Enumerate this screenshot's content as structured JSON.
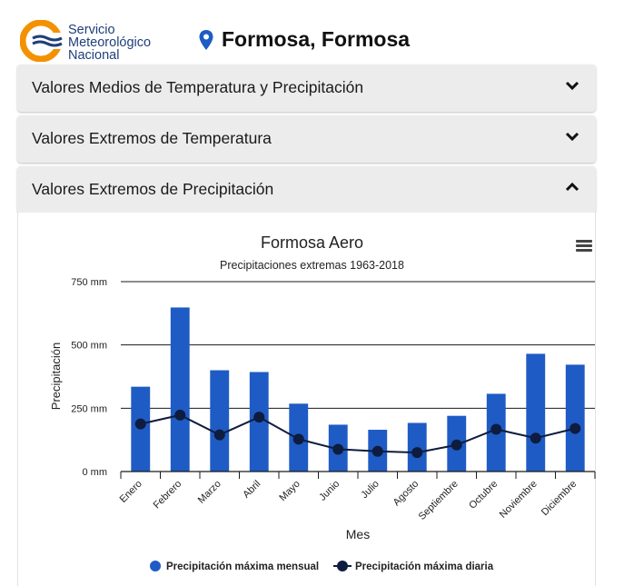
{
  "header": {
    "logo_lines": [
      "Servicio",
      "Meteorológico",
      "Nacional"
    ],
    "location": "Formosa, Formosa"
  },
  "accordions": [
    {
      "label": "Valores Medios de Temperatura y Precipitación",
      "state": "collapsed"
    },
    {
      "label": "Valores Extremos de Temperatura",
      "state": "collapsed"
    },
    {
      "label": "Valores Extremos de Precipitación",
      "state": "expanded"
    }
  ],
  "colors": {
    "bar": "#1f5bc4",
    "line": "#0e1c3f",
    "logo_orange": "#f39200",
    "logo_blue": "#1f3f7a",
    "pin": "#1f5bc4"
  },
  "chart_data": {
    "type": "bar",
    "title": "Formosa Aero",
    "subtitle": "Precipitaciones extremas 1963-2018",
    "xlabel": "Mes",
    "ylabel": "Precipitación",
    "ylim": [
      0,
      750
    ],
    "yticks": [
      0,
      250,
      500,
      750
    ],
    "ytick_labels": [
      "0 mm",
      "250 mm",
      "500 mm",
      "750 mm"
    ],
    "grid": true,
    "legend_position": "bottom",
    "categories": [
      "Enero",
      "Febrero",
      "Marzo",
      "Abril",
      "Mayo",
      "Junio",
      "Julio",
      "Agosto",
      "Septiembre",
      "Octubre",
      "Noviembre",
      "Diciembre"
    ],
    "series": [
      {
        "name": "Precipitación máxima mensual",
        "type": "bar",
        "values": [
          335,
          648,
          400,
          393,
          268,
          185,
          165,
          192,
          220,
          307,
          465,
          422
        ]
      },
      {
        "name": "Precipitación máxima diaria",
        "type": "line",
        "values": [
          188,
          223,
          145,
          215,
          128,
          88,
          80,
          75,
          105,
          167,
          132,
          170
        ]
      }
    ]
  }
}
